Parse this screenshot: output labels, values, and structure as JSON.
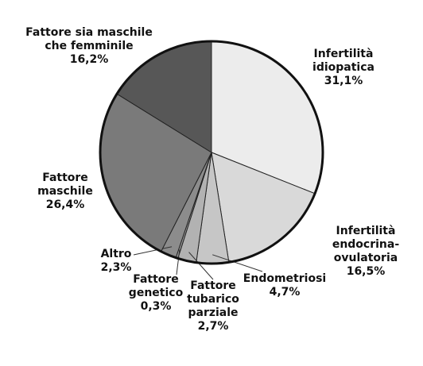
{
  "chart_data": {
    "type": "pie",
    "categories": [
      "Infertilità idiopatica",
      "Infertilità endocrina-ovulatoria",
      "Endometriosi",
      "Fattore tubarico parziale",
      "Fattore genetico",
      "Altro",
      "Fattore maschile",
      "Fattore sia maschile che femminile"
    ],
    "values": [
      31.1,
      16.5,
      4.7,
      2.7,
      0.3,
      2.3,
      26.4,
      16.2
    ],
    "value_labels": [
      "31,1%",
      "16,5%",
      "4,7%",
      "2,7%",
      "0,3%",
      "2,3%",
      "26,4%",
      "16,2%"
    ],
    "colors": [
      "#ececec",
      "#d9d9d9",
      "#c6c6c6",
      "#b2b2b2",
      "#9c9c9c",
      "#8c8c8c",
      "#7a7a7a",
      "#575757"
    ]
  }
}
